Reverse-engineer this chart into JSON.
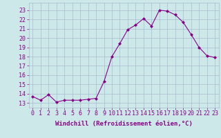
{
  "x": [
    0,
    1,
    2,
    3,
    4,
    5,
    6,
    7,
    8,
    9,
    10,
    11,
    12,
    13,
    14,
    15,
    16,
    17,
    18,
    19,
    20,
    21,
    22,
    23
  ],
  "y": [
    13.7,
    13.3,
    13.9,
    13.1,
    13.3,
    13.3,
    13.3,
    13.4,
    13.5,
    15.3,
    18.0,
    19.4,
    20.9,
    21.4,
    22.1,
    21.3,
    23.0,
    22.9,
    22.5,
    21.7,
    20.4,
    19.0,
    18.1,
    17.9
  ],
  "line_color": "#880088",
  "marker": "D",
  "marker_size": 2.0,
  "bg_color": "#cce8e8",
  "grid_color": "#aabbd0",
  "xlabel": "Windchill (Refroidissement éolien,°C)",
  "ylabel_ticks": [
    13,
    14,
    15,
    16,
    17,
    18,
    19,
    20,
    21,
    22,
    23
  ],
  "ylim": [
    12.5,
    23.8
  ],
  "xlim": [
    -0.5,
    23.5
  ],
  "xlabel_fontsize": 6.5,
  "tick_fontsize": 6.0,
  "tick_color": "#880088"
}
